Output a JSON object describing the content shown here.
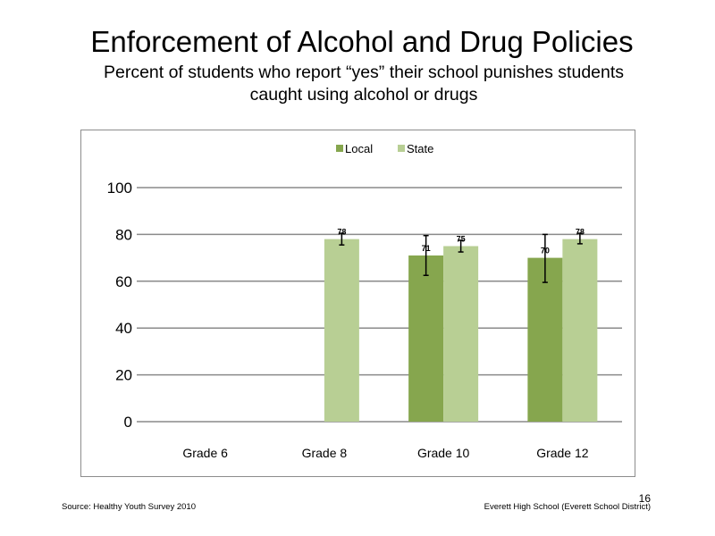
{
  "slide": {
    "title": "Enforcement of Alcohol and Drug Policies",
    "subtitle_line1": "Percent of students who report “yes” their school punishes students",
    "subtitle_line2": "caught using alcohol or drugs",
    "source": "Source: Healthy Youth Survey 2010",
    "school": "Everett High School (Everett School District)",
    "page_number": "16"
  },
  "chart_data": {
    "type": "bar",
    "categories": [
      "Grade 6",
      "Grade 8",
      "Grade 10",
      "Grade 12"
    ],
    "series": [
      {
        "name": "Local",
        "color": "#86a64e",
        "values": [
          null,
          null,
          71,
          70
        ],
        "labels": [
          "",
          "",
          "71",
          "70"
        ],
        "error_low": [
          null,
          null,
          62.5,
          59.5
        ],
        "error_high": [
          null,
          null,
          79.5,
          80
        ]
      },
      {
        "name": "State",
        "color": "#b8cf94",
        "values": [
          null,
          78,
          75,
          78
        ],
        "labels": [
          "",
          "78",
          "75",
          "78"
        ],
        "error_low": [
          null,
          75.5,
          72.5,
          76
        ],
        "error_high": [
          null,
          80.5,
          77.5,
          80.5
        ]
      }
    ],
    "yticks": [
      "0",
      "20",
      "40",
      "60",
      "80",
      "100"
    ],
    "ylim": [
      0,
      100
    ],
    "grid": true,
    "legend_position": "top"
  }
}
